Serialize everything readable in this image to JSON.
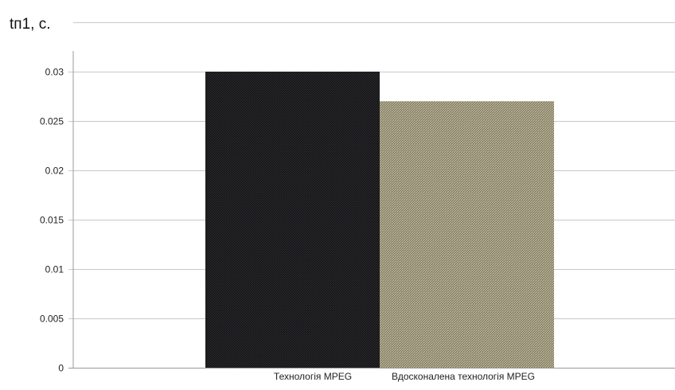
{
  "chart_data": {
    "type": "bar",
    "title": "",
    "xlabel": "",
    "ylabel": "tп1, с.",
    "categories": [
      "Технологія MPEG",
      "Вдосконалена технологія MPEG"
    ],
    "values": [
      0.03,
      0.027
    ],
    "ylim": [
      0,
      0.03
    ],
    "yticks": [
      0,
      0.005,
      0.01,
      0.015,
      0.02,
      0.025,
      0.03
    ],
    "ytick_labels": [
      "0",
      "0.005",
      "0.01",
      "0.015",
      "0.02",
      "0.025",
      "0.03"
    ],
    "grid": true,
    "legend": "none",
    "colors": [
      "#1c1c1e",
      "#8f8a72"
    ]
  }
}
